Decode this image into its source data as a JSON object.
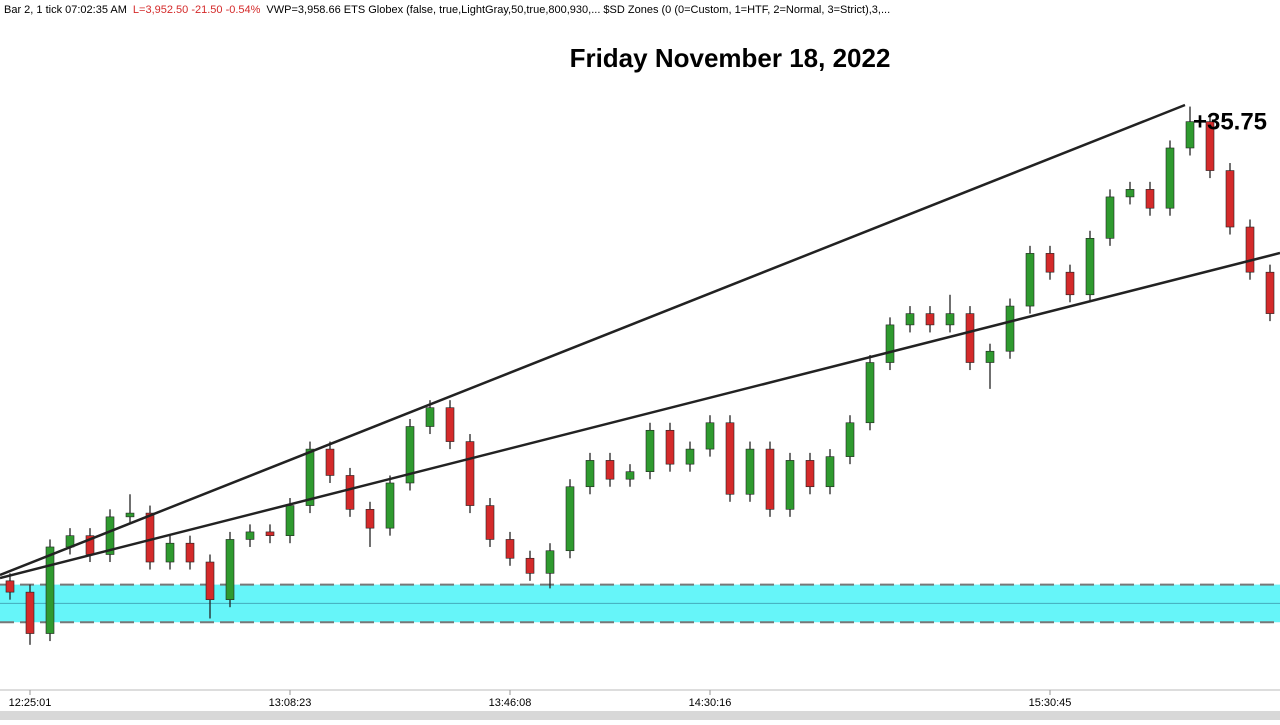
{
  "header": {
    "bar_info": "Bar 2, 1 tick  07:02:35 AM",
    "price_info": "L=3,952.50  -21.50  -0.54%",
    "indicators": "VWP=3,958.66  ETS Globex (false,  true,LightGray,50,true,800,930,...  $SD Zones (0  (0=Custom, 1=HTF, 2=Normal, 3=Strict),3,..."
  },
  "chart_data": {
    "type": "candlestick",
    "title": "Friday November 18, 2022",
    "annotation": "+35.75",
    "categories": [
      null,
      "12:25:01",
      null,
      null,
      null,
      null,
      null,
      null,
      null,
      null,
      null,
      null,
      null,
      null,
      "13:08:23",
      null,
      null,
      null,
      null,
      null,
      null,
      null,
      null,
      null,
      null,
      "13:46:08",
      null,
      null,
      null,
      null,
      null,
      null,
      null,
      null,
      null,
      "14:30:16",
      null,
      null,
      null,
      null,
      null,
      null,
      null,
      null,
      null,
      null,
      null,
      null,
      null,
      null,
      null,
      null,
      "15:30:45",
      null,
      null,
      null,
      null,
      null,
      null,
      null,
      null,
      null,
      null,
      null
    ],
    "open": [
      3936.25,
      3935.5,
      3932.75,
      3938.5,
      3939.25,
      3938,
      3940.5,
      3940.75,
      3937.5,
      3938.75,
      3937.5,
      3935,
      3939,
      3939.5,
      3939.25,
      3941.25,
      3945,
      3943.25,
      3941,
      3939.75,
      3942.75,
      3946.5,
      3947.75,
      3945.5,
      3941.25,
      3939,
      3937.75,
      3936.75,
      3938.25,
      3942.5,
      3944.25,
      3943,
      3943.5,
      3946.25,
      3944,
      3945,
      3946.75,
      3942,
      3945,
      3941,
      3944.25,
      3942.5,
      3944.5,
      3946.75,
      3950.75,
      3953.25,
      3954,
      3953.25,
      3954,
      3950.75,
      3951.5,
      3954.5,
      3958,
      3956.75,
      3955.25,
      3959,
      3961.75,
      3962.25,
      3961,
      3965,
      3966.75,
      3963.5,
      3959.75,
      3956.75
    ],
    "high": [
      3936.75,
      3936,
      3939,
      3939.75,
      3939.75,
      3941,
      3942,
      3941.25,
      3939.25,
      3939.25,
      3938,
      3939.5,
      3940,
      3940,
      3941.75,
      3945.5,
      3945.5,
      3943.75,
      3941.5,
      3943.25,
      3947,
      3948.25,
      3948.25,
      3946,
      3941.75,
      3939.5,
      3938.25,
      3938.75,
      3943,
      3944.75,
      3944.75,
      3944,
      3946.75,
      3946.75,
      3945.5,
      3947.25,
      3947.25,
      3945.5,
      3945.5,
      3944.75,
      3944.75,
      3945,
      3947.25,
      3951.25,
      3953.75,
      3954.5,
      3954.5,
      3955.25,
      3954.5,
      3952,
      3955,
      3958.5,
      3958.5,
      3957.25,
      3959.5,
      3962.25,
      3962.75,
      3962.75,
      3965.5,
      3967.75,
      3967.25,
      3964,
      3960.25,
      3957.25
    ],
    "low": [
      3935,
      3932,
      3932.25,
      3938,
      3937.5,
      3937.5,
      3940,
      3937,
      3937,
      3937,
      3933.75,
      3934.5,
      3938.5,
      3938.75,
      3938.75,
      3940.75,
      3942.75,
      3940.5,
      3938.5,
      3939.25,
      3942.25,
      3946,
      3945,
      3940.75,
      3938.5,
      3937.25,
      3936.25,
      3935.75,
      3937.75,
      3942,
      3942.5,
      3942.5,
      3943,
      3943.5,
      3943.5,
      3944.5,
      3941.5,
      3941.5,
      3940.5,
      3940.5,
      3942,
      3942,
      3944,
      3946.25,
      3950.25,
      3952.75,
      3952.75,
      3952.75,
      3950.25,
      3949,
      3951,
      3954,
      3956.25,
      3954.75,
      3954.75,
      3958.5,
      3961.25,
      3960.5,
      3960.5,
      3964.5,
      3963,
      3959.25,
      3956.25,
      3953.5
    ],
    "close": [
      3935.5,
      3932.75,
      3938.5,
      3939.25,
      3938,
      3940.5,
      3940.75,
      3937.5,
      3938.75,
      3937.5,
      3935,
      3939,
      3939.5,
      3939.25,
      3941.25,
      3945,
      3943.25,
      3941,
      3939.75,
      3942.75,
      3946.5,
      3947.75,
      3945.5,
      3941.25,
      3939,
      3937.75,
      3936.75,
      3938.25,
      3942.5,
      3944.25,
      3943,
      3943.5,
      3946.25,
      3944,
      3945,
      3946.75,
      3942,
      3945,
      3941,
      3944.25,
      3942.5,
      3944.5,
      3946.75,
      3950.75,
      3953.25,
      3954,
      3953.25,
      3954,
      3950.75,
      3951.5,
      3954.5,
      3958,
      3956.75,
      3955.25,
      3959,
      3961.75,
      3962.25,
      3961,
      3965,
      3966.75,
      3963.5,
      3959.75,
      3956.75,
      3954
    ],
    "up_color": "#2f9a2f",
    "down_color": "#d42a2a",
    "zone": {
      "high": 3936,
      "low": 3933.5,
      "mid": 3934.75,
      "color": "#66f5f9"
    },
    "ylim": [
      3929,
      3973.5
    ]
  }
}
